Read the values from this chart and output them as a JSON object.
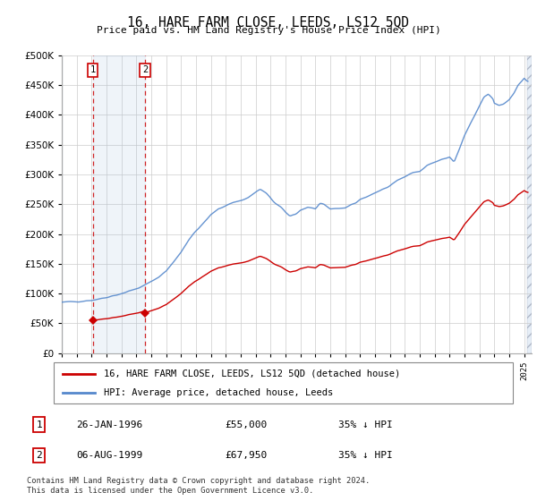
{
  "title": "16, HARE FARM CLOSE, LEEDS, LS12 5QD",
  "subtitle": "Price paid vs. HM Land Registry's House Price Index (HPI)",
  "ylim": [
    0,
    500000
  ],
  "yticks": [
    0,
    50000,
    100000,
    150000,
    200000,
    250000,
    300000,
    350000,
    400000,
    450000,
    500000
  ],
  "hpi_color": "#5588cc",
  "price_color": "#cc0000",
  "vline1_x": 1996.07,
  "vline2_x": 1999.59,
  "sale1_price": 55000,
  "sale2_price": 67950,
  "sale1_date": "26-JAN-1996",
  "sale2_date": "06-AUG-1999",
  "sale1_info": "35% ↓ HPI",
  "sale2_info": "35% ↓ HPI",
  "legend_line1": "16, HARE FARM CLOSE, LEEDS, LS12 5QD (detached house)",
  "legend_line2": "HPI: Average price, detached house, Leeds",
  "footnote": "Contains HM Land Registry data © Crown copyright and database right 2024.\nThis data is licensed under the Open Government Licence v3.0.",
  "xmin": 1994.0,
  "xmax": 2025.5
}
